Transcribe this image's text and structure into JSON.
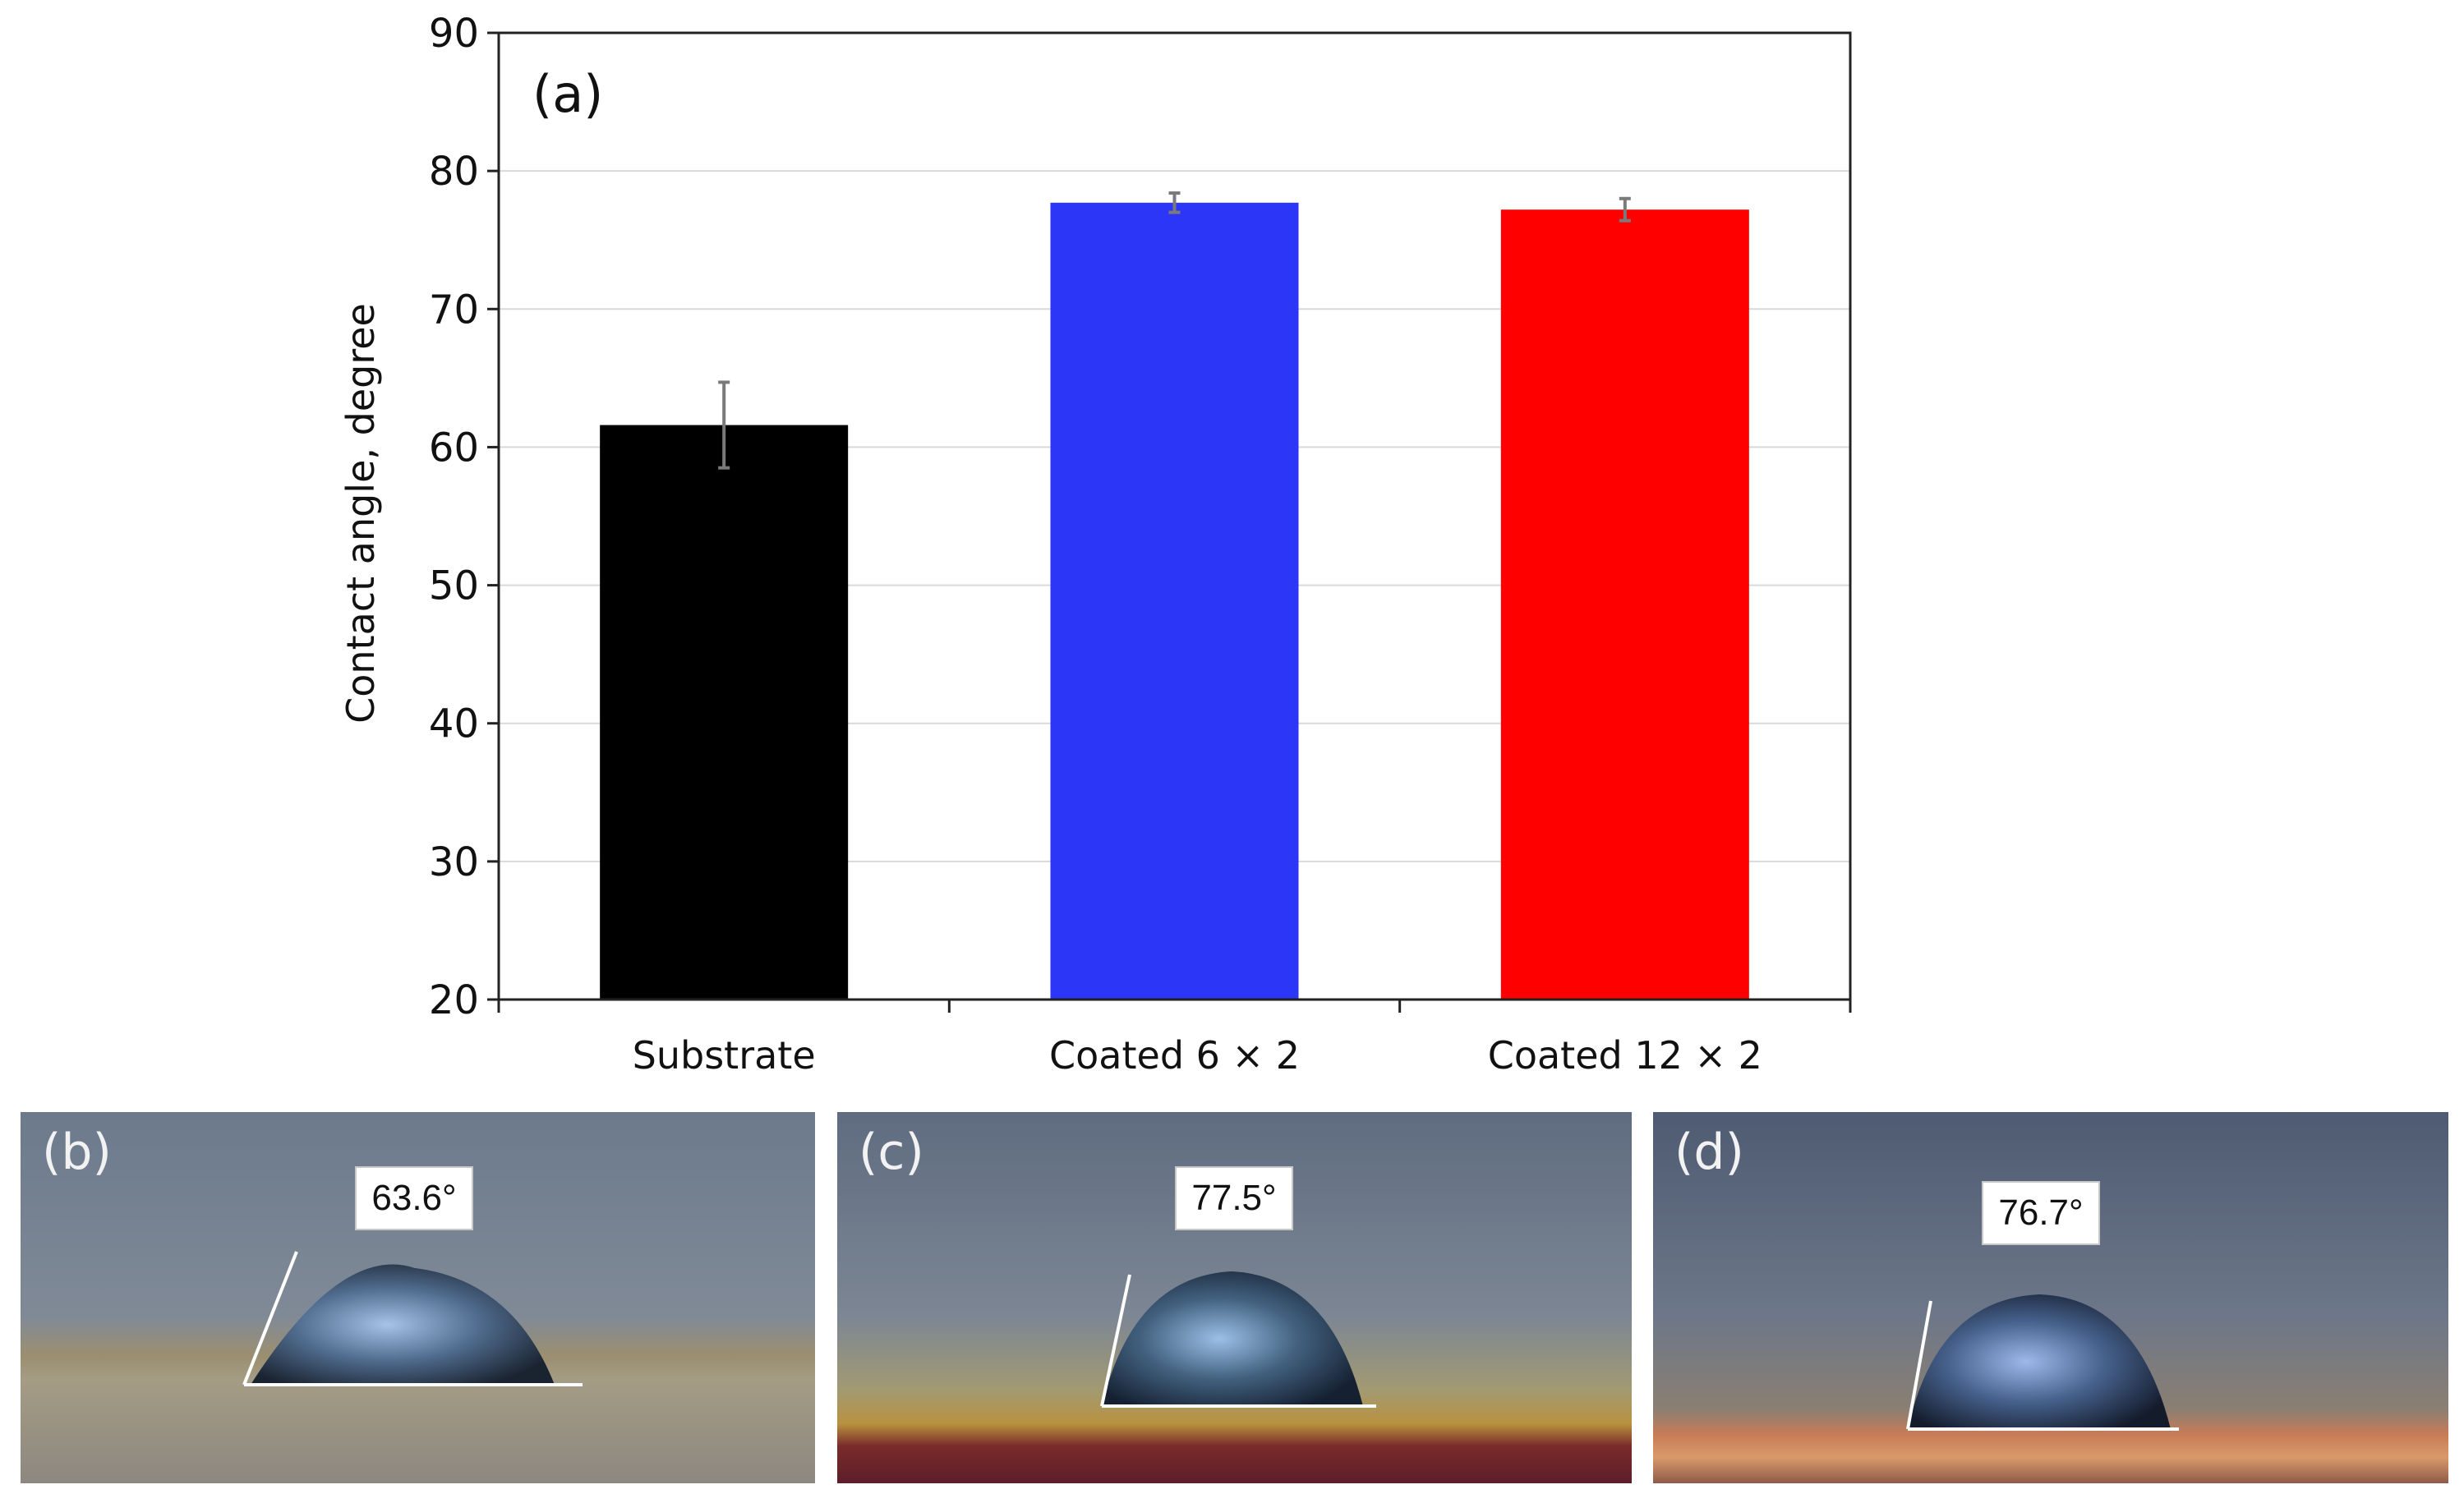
{
  "chart_data": {
    "type": "bar",
    "panel_label": "(a)",
    "title": "",
    "xlabel": "",
    "ylabel": "Contact angle, degree",
    "ylim": [
      20,
      90
    ],
    "yticks": [
      20,
      30,
      40,
      50,
      60,
      70,
      80,
      90
    ],
    "grid": true,
    "categories": [
      "Substrate",
      "Coated 6 × 2",
      "Coated 12 × 2"
    ],
    "values": [
      61.6,
      77.7,
      77.2
    ],
    "errors": [
      3.1,
      0.7,
      0.8
    ],
    "colors": [
      "#000000",
      "#2b36f7",
      "#ff0000"
    ]
  },
  "photos": [
    {
      "label": "(b)",
      "angle": "63.6°",
      "contact_angle_deg": 63.6
    },
    {
      "label": "(c)",
      "angle": "77.5°",
      "contact_angle_deg": 77.5
    },
    {
      "label": "(d)",
      "angle": "76.7°",
      "contact_angle_deg": 76.7
    }
  ]
}
